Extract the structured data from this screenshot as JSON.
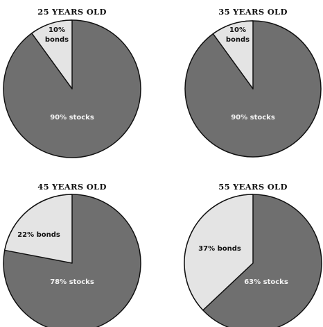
{
  "colors": {
    "stocks": "#6f6f6f",
    "bonds": "#e4e4e4",
    "stroke": "#111111",
    "label_on_stocks": "#f2f2f2",
    "label_on_bonds": "#111111"
  },
  "chart_data": [
    {
      "type": "pie",
      "title": "25 YEARS OLD",
      "slices": [
        {
          "name": "stocks",
          "value": 90,
          "label": "90% stocks"
        },
        {
          "name": "bonds",
          "value": 10,
          "label_lines": [
            "10%",
            "bonds"
          ]
        }
      ]
    },
    {
      "type": "pie",
      "title": "35 YEARS OLD",
      "slices": [
        {
          "name": "stocks",
          "value": 90,
          "label": "90% stocks"
        },
        {
          "name": "bonds",
          "value": 10,
          "label_lines": [
            "10%",
            "bonds"
          ]
        }
      ]
    },
    {
      "type": "pie",
      "title": "45 YEARS OLD",
      "slices": [
        {
          "name": "stocks",
          "value": 78,
          "label": "78% stocks"
        },
        {
          "name": "bonds",
          "value": 22,
          "label": "22% bonds"
        }
      ]
    },
    {
      "type": "pie",
      "title": "55 YEARS OLD",
      "slices": [
        {
          "name": "stocks",
          "value": 63,
          "label": "63% stocks"
        },
        {
          "name": "bonds",
          "value": 37,
          "label": "37% bonds"
        }
      ]
    }
  ]
}
